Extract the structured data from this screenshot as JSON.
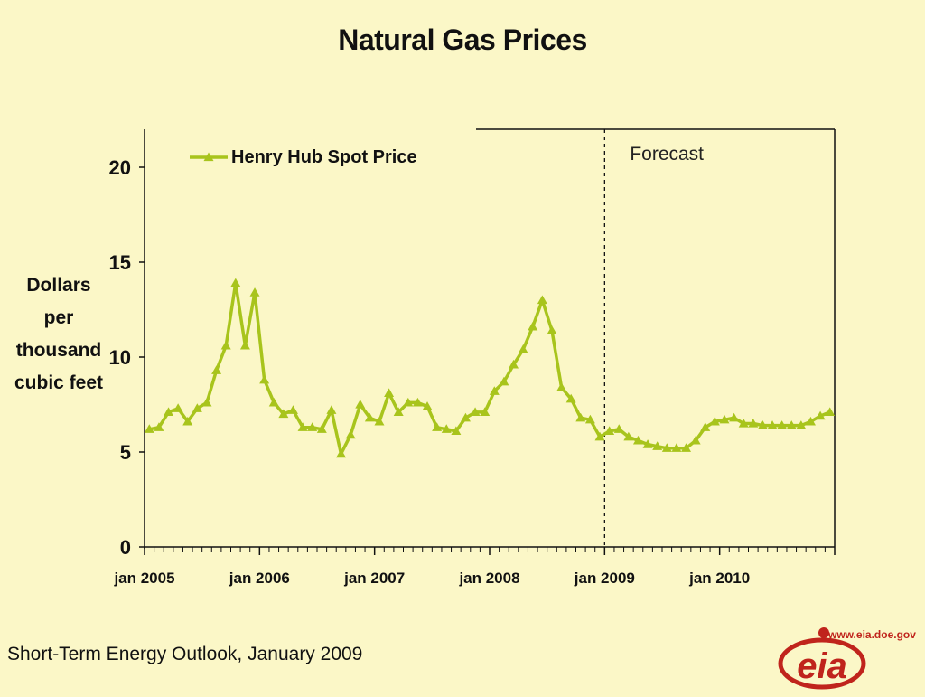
{
  "slide": {
    "title": "Natural Gas Prices",
    "ylabel_lines": [
      "Dollars",
      "per",
      "thousand",
      "cubic feet"
    ],
    "source": "Short-Term Energy Outlook, January 2009",
    "logo_text": "eia",
    "logo_url": "www.eia.doe.gov"
  },
  "chart_data": {
    "type": "line",
    "title": "Natural Gas Prices",
    "ylabel": "Dollars per thousand cubic feet",
    "xlabel": "",
    "ylim": [
      0,
      22
    ],
    "yticks": [
      0,
      5,
      10,
      15,
      20
    ],
    "x_tick_labels": [
      "jan 2005",
      "jan 2006",
      "jan 2007",
      "jan 2008",
      "jan 2009",
      "jan 2010"
    ],
    "legend": "top-left",
    "forecast_label": "Forecast",
    "forecast_start": "2009-01",
    "series": [
      {
        "name": "Henry Hub Spot Price",
        "color": "#a8c41c",
        "marker": "triangle",
        "start": "2005-01",
        "values": [
          6.2,
          6.3,
          7.1,
          7.3,
          6.6,
          7.3,
          7.6,
          9.3,
          10.6,
          13.9,
          10.6,
          13.4,
          8.8,
          7.6,
          7.0,
          7.2,
          6.3,
          6.3,
          6.2,
          7.2,
          4.9,
          5.9,
          7.5,
          6.8,
          6.6,
          8.1,
          7.1,
          7.6,
          7.6,
          7.4,
          6.3,
          6.2,
          6.1,
          6.8,
          7.1,
          7.1,
          8.2,
          8.7,
          9.6,
          10.4,
          11.6,
          13.0,
          11.4,
          8.4,
          7.8,
          6.8,
          6.7,
          5.8,
          6.1,
          6.2,
          5.8,
          5.6,
          5.4,
          5.3,
          5.2,
          5.2,
          5.2,
          5.6,
          6.3,
          6.6,
          6.7,
          6.8,
          6.5,
          6.5,
          6.4,
          6.4,
          6.4,
          6.4,
          6.4,
          6.6,
          6.9,
          7.1
        ]
      }
    ]
  }
}
